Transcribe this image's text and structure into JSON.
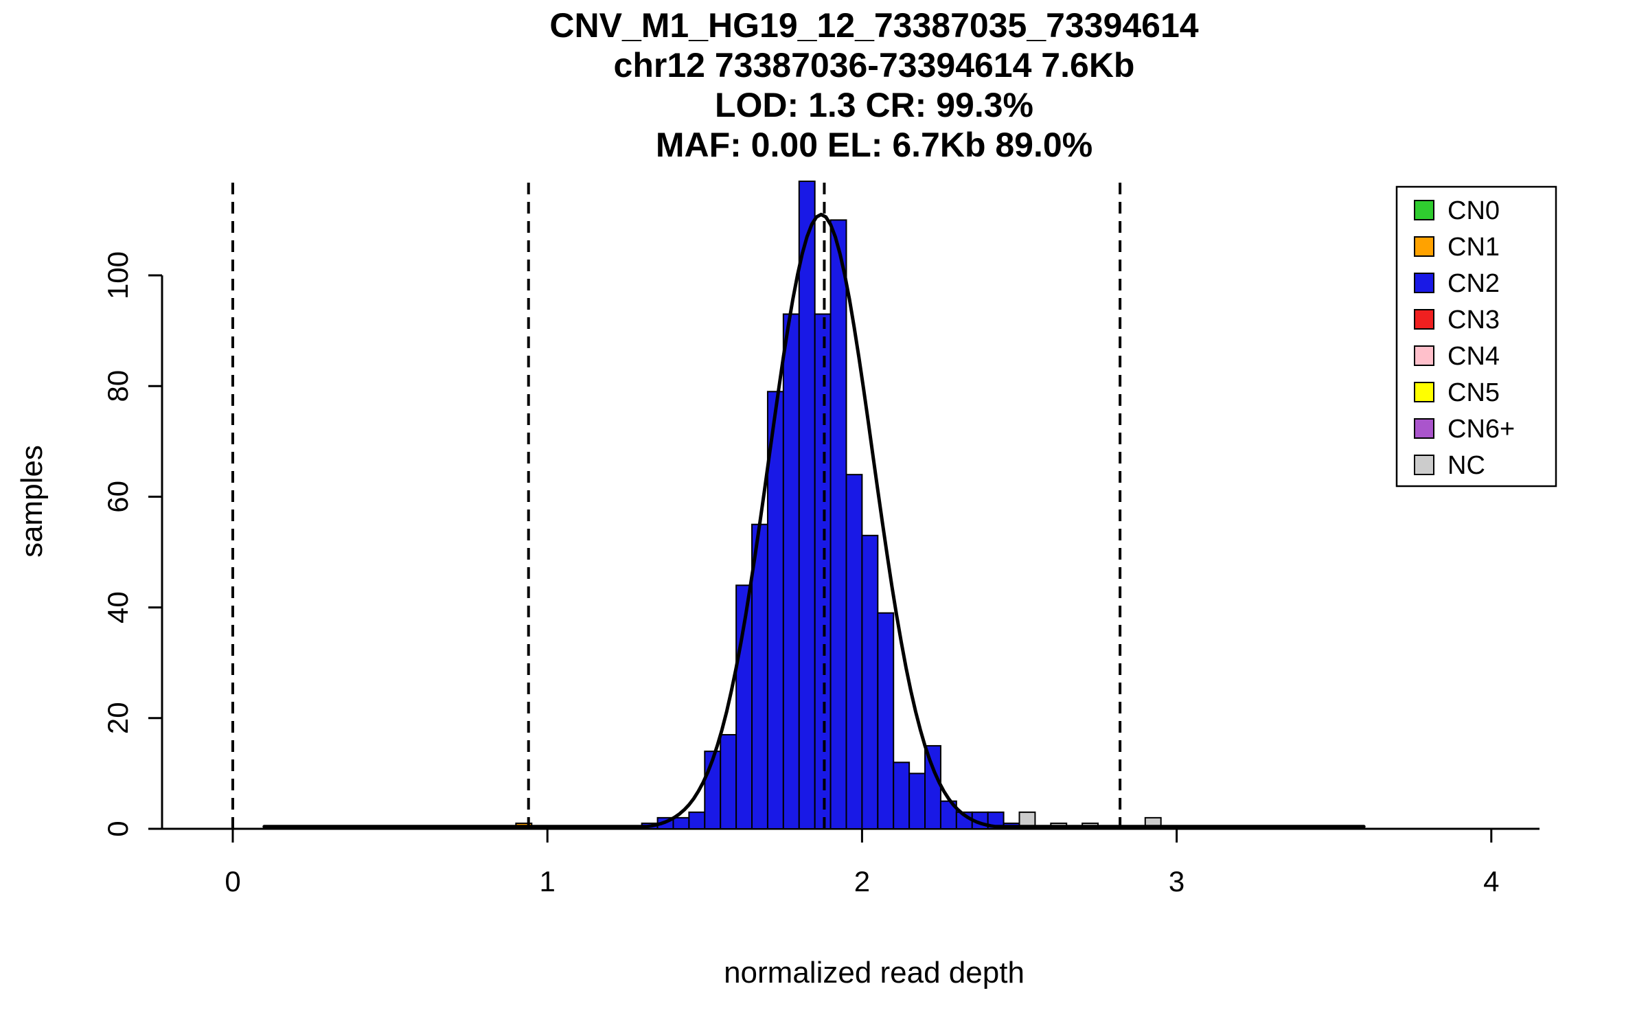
{
  "figure": {
    "background": "#FFFFFF"
  },
  "chart_data": {
    "type": "bar",
    "subtype": "histogram-with-density-curve",
    "title": "CNV_M1_HG19_12_73387035_73394614",
    "title_lines": [
      "CNV_M1_HG19_12_73387035_73394614",
      "chr12 73387036-73394614 7.6Kb",
      "LOD: 1.3 CR: 99.3%",
      "MAF: 0.00 EL: 6.7Kb 89.0%"
    ],
    "xlabel": "normalized read depth",
    "ylabel": "samples",
    "x_ticks": [
      0,
      1,
      2,
      3,
      4
    ],
    "y_ticks": [
      0,
      20,
      40,
      60,
      80,
      100
    ],
    "xlim": [
      -0.25,
      4.15
    ],
    "ylim": [
      0,
      118
    ],
    "grid": false,
    "bin_width": 0.05,
    "bins": [
      {
        "x0": 0.9,
        "count": 1,
        "cn": "CN1"
      },
      {
        "x0": 1.3,
        "count": 1,
        "cn": "CN2"
      },
      {
        "x0": 1.35,
        "count": 2,
        "cn": "CN2"
      },
      {
        "x0": 1.4,
        "count": 2,
        "cn": "CN2"
      },
      {
        "x0": 1.45,
        "count": 3,
        "cn": "CN2"
      },
      {
        "x0": 1.5,
        "count": 14,
        "cn": "CN2"
      },
      {
        "x0": 1.55,
        "count": 17,
        "cn": "CN2"
      },
      {
        "x0": 1.6,
        "count": 44,
        "cn": "CN2"
      },
      {
        "x0": 1.65,
        "count": 55,
        "cn": "CN2"
      },
      {
        "x0": 1.7,
        "count": 79,
        "cn": "CN2"
      },
      {
        "x0": 1.75,
        "count": 93,
        "cn": "CN2"
      },
      {
        "x0": 1.8,
        "count": 117,
        "cn": "CN2"
      },
      {
        "x0": 1.85,
        "count": 93,
        "cn": "CN2"
      },
      {
        "x0": 1.9,
        "count": 110,
        "cn": "CN2"
      },
      {
        "x0": 1.95,
        "count": 64,
        "cn": "CN2"
      },
      {
        "x0": 2.0,
        "count": 53,
        "cn": "CN2"
      },
      {
        "x0": 2.05,
        "count": 39,
        "cn": "CN2"
      },
      {
        "x0": 2.1,
        "count": 12,
        "cn": "CN2"
      },
      {
        "x0": 2.15,
        "count": 10,
        "cn": "CN2"
      },
      {
        "x0": 2.2,
        "count": 15,
        "cn": "CN2"
      },
      {
        "x0": 2.25,
        "count": 5,
        "cn": "CN2"
      },
      {
        "x0": 2.3,
        "count": 3,
        "cn": "CN2"
      },
      {
        "x0": 2.35,
        "count": 3,
        "cn": "CN2"
      },
      {
        "x0": 2.4,
        "count": 3,
        "cn": "CN2"
      },
      {
        "x0": 2.45,
        "count": 1,
        "cn": "CN2"
      },
      {
        "x0": 2.5,
        "count": 3,
        "cn": "NC"
      },
      {
        "x0": 2.6,
        "count": 1,
        "cn": "NC"
      },
      {
        "x0": 2.7,
        "count": 1,
        "cn": "NC"
      },
      {
        "x0": 2.9,
        "count": 2,
        "cn": "NC"
      }
    ],
    "dashed_vlines_x": [
      0,
      0.94,
      1.88,
      2.82
    ],
    "density_curve": {
      "mean": 1.87,
      "sd": 0.165,
      "peak": 111,
      "x_start": 0.1,
      "x_end": 3.6
    },
    "legend": {
      "position": "top-right",
      "entries": [
        {
          "label": "CN0",
          "color": "#2FCC2F"
        },
        {
          "label": "CN1",
          "color": "#FFA200"
        },
        {
          "label": "CN2",
          "color": "#1919E6"
        },
        {
          "label": "CN3",
          "color": "#F02020"
        },
        {
          "label": "CN4",
          "color": "#FFC0CB"
        },
        {
          "label": "CN5",
          "color": "#FFFF00"
        },
        {
          "label": "CN6+",
          "color": "#AA55CC"
        },
        {
          "label": "NC",
          "color": "#CCCCCC"
        }
      ]
    }
  }
}
